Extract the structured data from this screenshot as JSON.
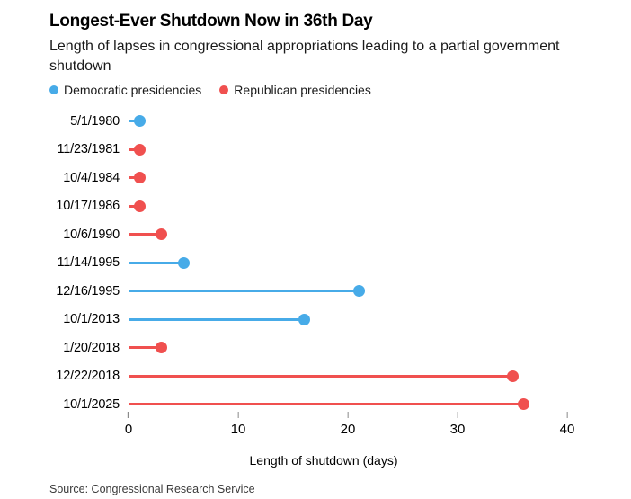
{
  "header": {
    "title": "Longest-Ever Shutdown Now in 36th Day",
    "subtitle": "Length of lapses in congressional appropriations leading to a partial government shutdown"
  },
  "legend": {
    "items": [
      {
        "label": "Democratic presidencies",
        "party": "dem",
        "color": "#47ABE8"
      },
      {
        "label": "Republican presidencies",
        "party": "rep",
        "color": "#F0504F"
      }
    ]
  },
  "chart_data": {
    "type": "bar",
    "style": "lollipop",
    "orientation": "horizontal",
    "title": "Longest-Ever Shutdown Now in 36th Day",
    "subtitle": "Length of lapses in congressional appropriations leading to a partial government shutdown",
    "categories": [
      "5/1/1980",
      "11/23/1981",
      "10/4/1984",
      "10/17/1986",
      "10/6/1990",
      "11/14/1995",
      "12/16/1995",
      "10/1/2013",
      "1/20/2018",
      "12/22/2018",
      "10/1/2025"
    ],
    "values": [
      1,
      1,
      1,
      1,
      3,
      5,
      21,
      16,
      3,
      35,
      36
    ],
    "parties": [
      "dem",
      "rep",
      "rep",
      "rep",
      "rep",
      "dem",
      "dem",
      "dem",
      "rep",
      "rep",
      "rep"
    ],
    "colors": {
      "dem": "#47ABE8",
      "rep": "#F0504F"
    },
    "xlabel": "Length of shutdown (days)",
    "ylabel": "",
    "xlim": [
      0,
      40
    ],
    "xticks": [
      0,
      10,
      20,
      30,
      40
    ],
    "grid": false,
    "legend_position": "top-left"
  },
  "footer": {
    "source": "Source: Congressional Research Service"
  }
}
